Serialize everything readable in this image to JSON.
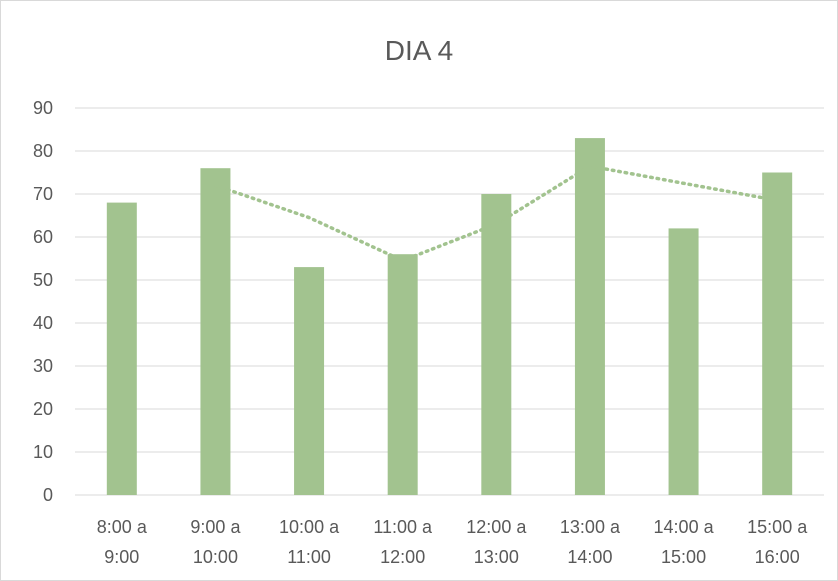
{
  "chart_data": {
    "type": "bar",
    "title": "DIA 4",
    "categories": [
      [
        "8:00 a",
        "9:00"
      ],
      [
        "9:00 a",
        "10:00"
      ],
      [
        "10:00 a",
        "11:00"
      ],
      [
        "11:00 a",
        "12:00"
      ],
      [
        "12:00 a",
        "13:00"
      ],
      [
        "13:00 a",
        "14:00"
      ],
      [
        "14:00 a",
        "15:00"
      ],
      [
        "15:00 a",
        "16:00"
      ]
    ],
    "values": [
      68,
      76,
      53,
      56,
      70,
      83,
      62,
      75
    ],
    "trendline": {
      "type": "moving-average",
      "period": 2,
      "style": "dotted",
      "values": [
        null,
        72,
        64.5,
        54.5,
        63,
        76.5,
        72.5,
        68.5
      ]
    },
    "ylim": [
      0,
      90
    ],
    "yticks": [
      0,
      10,
      20,
      30,
      40,
      50,
      60,
      70,
      80,
      90
    ],
    "grid": true,
    "legend": "none",
    "colors": {
      "bar": "#a2c38f",
      "trend": "#a2c38f",
      "grid": "#d9d9d9",
      "text": "#595959"
    }
  }
}
